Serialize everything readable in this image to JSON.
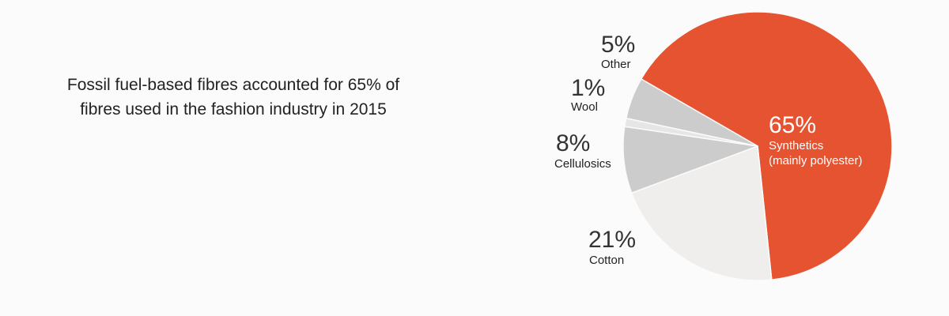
{
  "headline": {
    "line1": "Fossil fuel-based fibres accounted for 65% of",
    "line2": "fibres used in the fashion industry in 2015"
  },
  "colors": {
    "background": "#fbfbfb",
    "synthetics": "#e65331",
    "cotton": "#efeeec",
    "cellulosics": "#cccccc",
    "wool": "#e6e6e6",
    "other": "#cccccc"
  },
  "chart_data": {
    "type": "pie",
    "title": "",
    "start_angle_deg": -60,
    "direction": "clockwise",
    "slices": [
      {
        "key": "synthetics",
        "value": 65,
        "value_label": "65%",
        "label_line1": "Synthetics",
        "label_line2": "(mainly polyester)"
      },
      {
        "key": "cotton",
        "value": 21,
        "value_label": "21%",
        "label_line1": "Cotton"
      },
      {
        "key": "cellulosics",
        "value": 8,
        "value_label": "8%",
        "label_line1": "Cellulosics"
      },
      {
        "key": "wool",
        "value": 1,
        "value_label": "1%",
        "label_line1": "Wool"
      },
      {
        "key": "other",
        "value": 5,
        "value_label": "5%",
        "label_line1": "Other"
      }
    ]
  }
}
